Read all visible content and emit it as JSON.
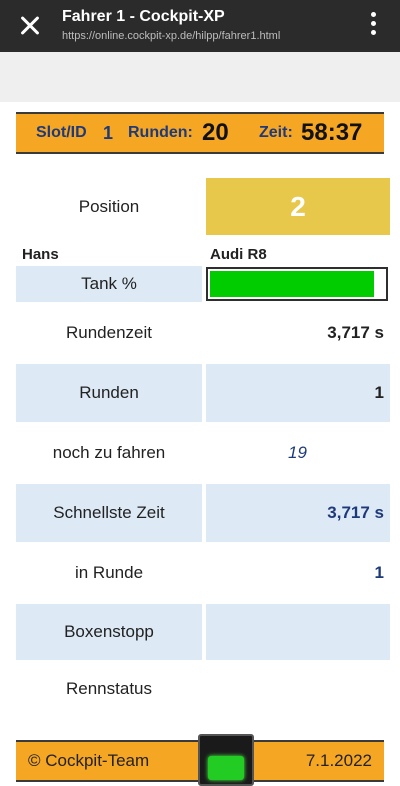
{
  "browser": {
    "title": "Fahrer 1 - Cockpit-XP",
    "url": "https://online.cockpit-xp.de/hilpp/fahrer1.html"
  },
  "header": {
    "slot_label": "Slot/ID",
    "slot_value": "1",
    "laps_label": "Runden:",
    "laps_value": "20",
    "time_label": "Zeit:",
    "time_value": "58:37"
  },
  "driver": {
    "position_label": "Position",
    "position_value": "2",
    "name": "Hans",
    "car": "Audi R8",
    "tank_label": "Tank %",
    "tank_level": 0.93,
    "tank_color": "#00cc00"
  },
  "stats": [
    {
      "label": "Rundenzeit",
      "value": "3,717 s",
      "color": "#222222"
    },
    {
      "label": "Runden",
      "value": "1",
      "color": "#222222"
    },
    {
      "label": "noch zu fahren",
      "value": "19",
      "color": "#1f3a7a"
    },
    {
      "label": "Schnellste Zeit",
      "value": "3,717 s",
      "color": "#1f3a7a"
    },
    {
      "label": "in Runde",
      "value": "1",
      "color": "#1f3a7a"
    },
    {
      "label": "Boxenstopp",
      "value": "",
      "color": "#222222"
    },
    {
      "label": "Rennstatus",
      "value": "",
      "color": "#222222"
    }
  ],
  "footer": {
    "copyright": "© Cockpit-Team",
    "date": "7.1.2022",
    "lamp_icon": "traffic-light-icon",
    "lamp_color": "#22cc22"
  }
}
